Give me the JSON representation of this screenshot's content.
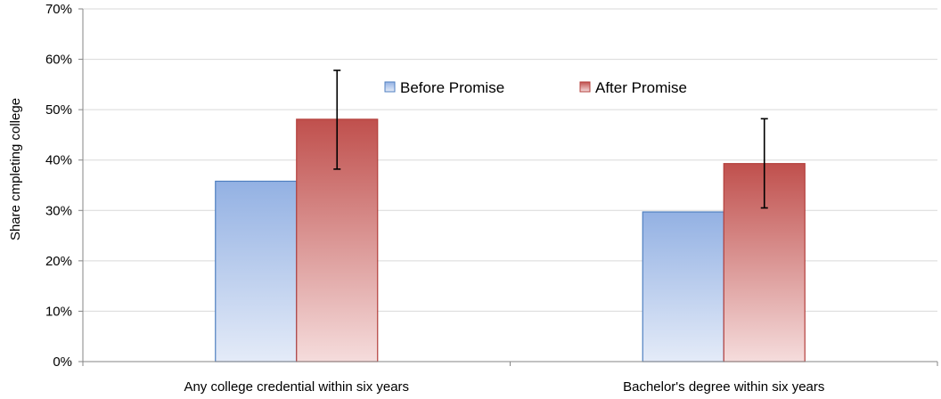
{
  "chart_data": {
    "type": "bar",
    "title": "",
    "xlabel": "",
    "ylabel": "Share cmpleting college",
    "categories": [
      "Any college credential within six years",
      "Bachelor's degree within six years"
    ],
    "series": [
      {
        "name": "Before Promise",
        "values": [
          0.358,
          0.297
        ],
        "color_top": "#93b1e3",
        "color_bottom": "#e4ebf8",
        "border": "#4f7fc0"
      },
      {
        "name": "After Promise",
        "values": [
          0.481,
          0.393
        ],
        "color_top": "#c0504d",
        "color_bottom": "#f5dcdc",
        "border": "#b4403d",
        "error_low": [
          0.382,
          0.305
        ],
        "error_high": [
          0.578,
          0.482
        ]
      }
    ],
    "ylim": [
      0,
      0.7
    ],
    "yticks": [
      0,
      0.1,
      0.2,
      0.3,
      0.4,
      0.5,
      0.6,
      0.7
    ],
    "ytick_labels": [
      "0%",
      "10%",
      "20%",
      "30%",
      "40%",
      "50%",
      "60%",
      "70%"
    ],
    "grid": true,
    "legend": "top-center"
  }
}
